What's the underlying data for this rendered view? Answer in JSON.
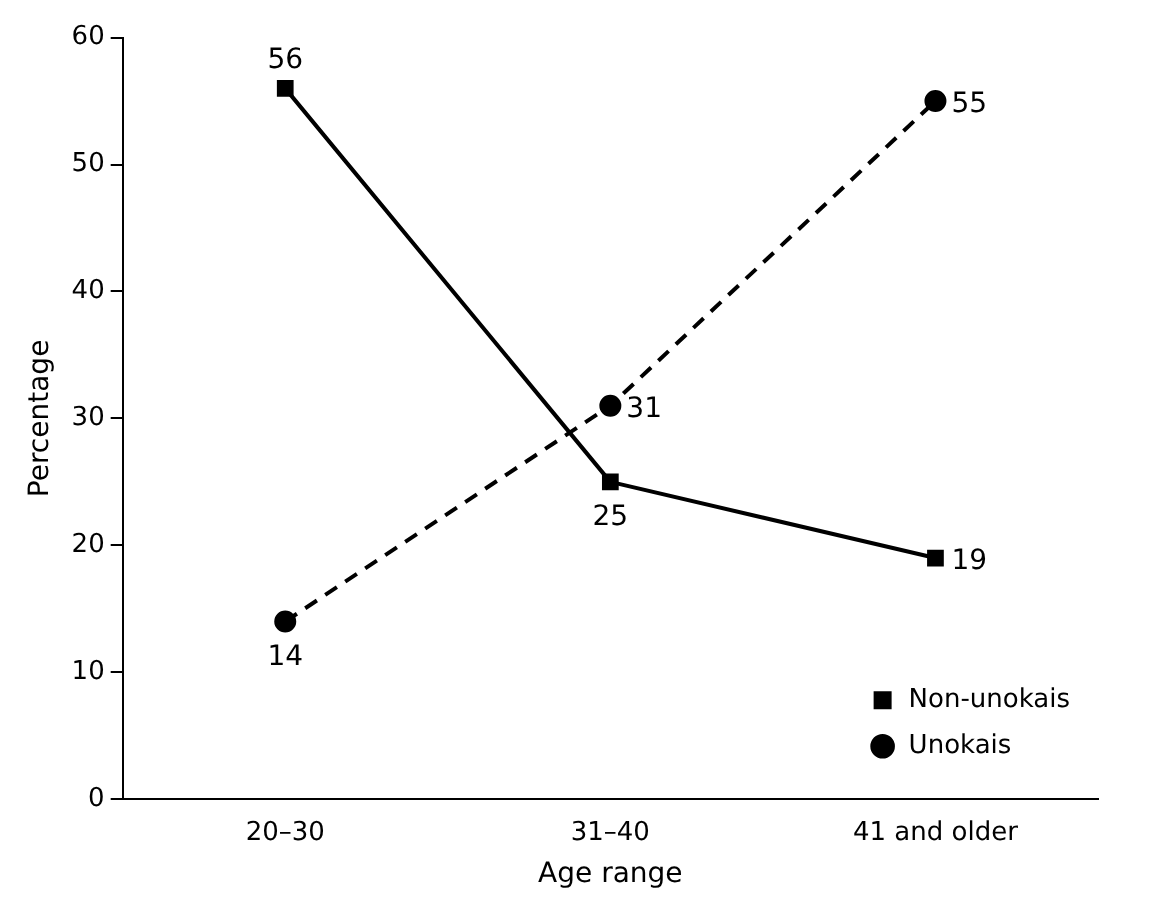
{
  "chart_data": {
    "type": "line",
    "xlabel": "Age range",
    "ylabel": "Percentage",
    "categories": [
      "20–30",
      "31–40",
      "41 and older"
    ],
    "series": [
      {
        "name": "Non-unokais",
        "color": "#000000",
        "values": [
          56,
          25,
          19
        ],
        "marker": "square",
        "line_style": "solid"
      },
      {
        "name": "Unokais",
        "color": "#000000",
        "values": [
          14,
          31,
          55
        ],
        "marker": "circle",
        "line_style": "dashed"
      }
    ],
    "ylim": [
      0,
      60
    ],
    "yticks": [
      0,
      10,
      20,
      30,
      40,
      50,
      60
    ],
    "grid": false,
    "legend": "bottom right",
    "data_labels": true
  }
}
